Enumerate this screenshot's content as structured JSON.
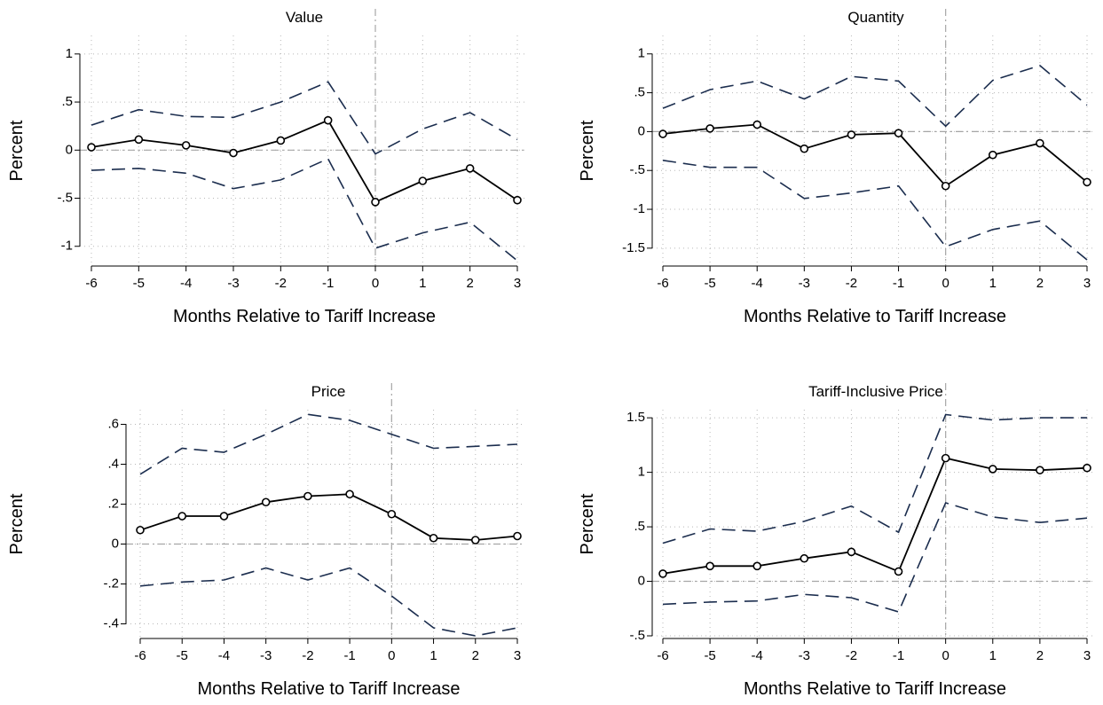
{
  "chart_data": [
    {
      "type": "line",
      "title": "Value",
      "xlabel": "Months Relative to Tariff Increase",
      "ylabel": "Percent",
      "x": [
        -6,
        -5,
        -4,
        -3,
        -2,
        -1,
        0,
        1,
        2,
        3
      ],
      "xticks": [
        "-6",
        "-5",
        "-4",
        "-3",
        "-2",
        "-1",
        "0",
        "1",
        "2",
        "3"
      ],
      "ylim": [
        -1.15,
        1.1
      ],
      "yticks": [
        -1,
        -0.5,
        0,
        0.5,
        1
      ],
      "ytick_labels": [
        "-1",
        "-.5",
        "0",
        ".5",
        "1"
      ],
      "series": [
        {
          "role": "estimate",
          "values": [
            0.03,
            0.11,
            0.05,
            -0.03,
            0.1,
            0.31,
            -0.54,
            -0.32,
            -0.19,
            -0.52
          ]
        },
        {
          "role": "upper-ci",
          "values": [
            0.26,
            0.42,
            0.35,
            0.34,
            0.5,
            0.71,
            -0.04,
            0.22,
            0.39,
            0.11
          ]
        },
        {
          "role": "lower-ci",
          "values": [
            -0.21,
            -0.19,
            -0.24,
            -0.4,
            -0.31,
            -0.09,
            -1.02,
            -0.86,
            -0.75,
            -1.15
          ]
        }
      ],
      "reference_lines": {
        "x": 0,
        "y": 0
      },
      "grid": true
    },
    {
      "type": "line",
      "title": "Quantity",
      "xlabel": "Months Relative to Tariff Increase",
      "ylabel": "Percent",
      "x": [
        -6,
        -5,
        -4,
        -3,
        -2,
        -1,
        0,
        1,
        2,
        3
      ],
      "xticks": [
        "-6",
        "-5",
        "-4",
        "-3",
        "-2",
        "-1",
        "0",
        "1",
        "2",
        "3"
      ],
      "ylim": [
        -1.65,
        1.1
      ],
      "yticks": [
        -1.5,
        -1,
        -0.5,
        0,
        0.5,
        1
      ],
      "ytick_labels": [
        "-1.5",
        "-1",
        "-.5",
        "0",
        ".5",
        "1"
      ],
      "series": [
        {
          "role": "estimate",
          "values": [
            -0.03,
            0.04,
            0.09,
            -0.22,
            -0.04,
            -0.02,
            -0.7,
            -0.3,
            -0.15,
            -0.65
          ]
        },
        {
          "role": "upper-ci",
          "values": [
            0.3,
            0.54,
            0.65,
            0.42,
            0.71,
            0.65,
            0.07,
            0.66,
            0.85,
            0.34
          ]
        },
        {
          "role": "lower-ci",
          "values": [
            -0.37,
            -0.46,
            -0.46,
            -0.86,
            -0.79,
            -0.7,
            -1.48,
            -1.26,
            -1.15,
            -1.65
          ]
        }
      ],
      "reference_lines": {
        "x": 0,
        "y": 0
      },
      "grid": true
    },
    {
      "type": "line",
      "title": "Price",
      "xlabel": "Months Relative to Tariff Increase",
      "ylabel": "Percent",
      "x": [
        -6,
        -5,
        -4,
        -3,
        -2,
        -1,
        0,
        1,
        2,
        3
      ],
      "xticks": [
        "-6",
        "-5",
        "-4",
        "-3",
        "-2",
        "-1",
        "0",
        "1",
        "2",
        "3"
      ],
      "ylim": [
        -0.46,
        0.66
      ],
      "yticks": [
        -0.4,
        -0.2,
        0,
        0.2,
        0.4,
        0.6
      ],
      "ytick_labels": [
        "-.4",
        "-.2",
        "0",
        ".2",
        ".4",
        ".6"
      ],
      "series": [
        {
          "role": "estimate",
          "values": [
            0.07,
            0.14,
            0.14,
            0.21,
            0.24,
            0.25,
            0.15,
            0.03,
            0.02,
            0.04
          ]
        },
        {
          "role": "upper-ci",
          "values": [
            0.35,
            0.48,
            0.46,
            0.55,
            0.65,
            0.62,
            0.55,
            0.48,
            0.49,
            0.5
          ]
        },
        {
          "role": "lower-ci",
          "values": [
            -0.21,
            -0.19,
            -0.18,
            -0.12,
            -0.18,
            -0.12,
            -0.26,
            -0.42,
            -0.46,
            -0.42
          ]
        }
      ],
      "reference_lines": {
        "x": 0,
        "y": 0
      },
      "grid": true
    },
    {
      "type": "line",
      "title": "Tariff-Inclusive Price",
      "xlabel": "Months Relative to Tariff Increase",
      "ylabel": "Percent",
      "x": [
        -6,
        -5,
        -4,
        -3,
        -2,
        -1,
        0,
        1,
        2,
        3
      ],
      "xticks": [
        "-6",
        "-5",
        "-4",
        "-3",
        "-2",
        "-1",
        "0",
        "1",
        "2",
        "3"
      ],
      "ylim": [
        -0.5,
        1.55
      ],
      "yticks": [
        -0.5,
        0,
        0.5,
        1,
        1.5
      ],
      "ytick_labels": [
        "-.5",
        "0",
        ".5",
        "1",
        "1.5"
      ],
      "series": [
        {
          "role": "estimate",
          "values": [
            0.07,
            0.14,
            0.14,
            0.21,
            0.27,
            0.09,
            1.13,
            1.03,
            1.02,
            1.04
          ]
        },
        {
          "role": "upper-ci",
          "values": [
            0.35,
            0.48,
            0.46,
            0.55,
            0.69,
            0.45,
            1.53,
            1.48,
            1.5,
            1.5
          ]
        },
        {
          "role": "lower-ci",
          "values": [
            -0.21,
            -0.19,
            -0.18,
            -0.12,
            -0.15,
            -0.28,
            0.72,
            0.59,
            0.54,
            0.58
          ]
        }
      ],
      "reference_lines": {
        "x": 0,
        "y": 0
      },
      "grid": true
    }
  ],
  "colors": {
    "estimate": "#000000",
    "ci": "#1b2d4e",
    "reference": "#a6a6a6",
    "grid": "#b8b8b8",
    "axis": "#000000"
  }
}
